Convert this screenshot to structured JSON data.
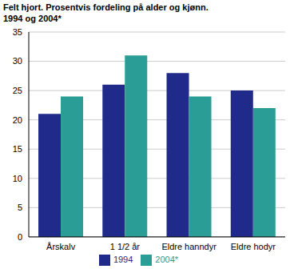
{
  "chart_data": {
    "type": "bar",
    "title": "Felt hjort. Prosentvis fordeling på alder og kjønn.",
    "subtitle": "1994 og 2004*",
    "categories": [
      "Årskalv",
      "1 1/2 år",
      "Eldre hanndyr",
      "Eldre hodyr"
    ],
    "series": [
      {
        "name": "1994",
        "color": "#1f2a8a",
        "values": [
          21,
          26,
          28,
          25
        ]
      },
      {
        "name": "2004*",
        "color": "#2a9d96",
        "values": [
          24,
          31,
          24,
          22
        ]
      }
    ],
    "ylim": [
      0,
      35
    ],
    "yticks": [
      0,
      5,
      10,
      15,
      20,
      25,
      30,
      35
    ],
    "grid": true,
    "legend": "bottom"
  }
}
